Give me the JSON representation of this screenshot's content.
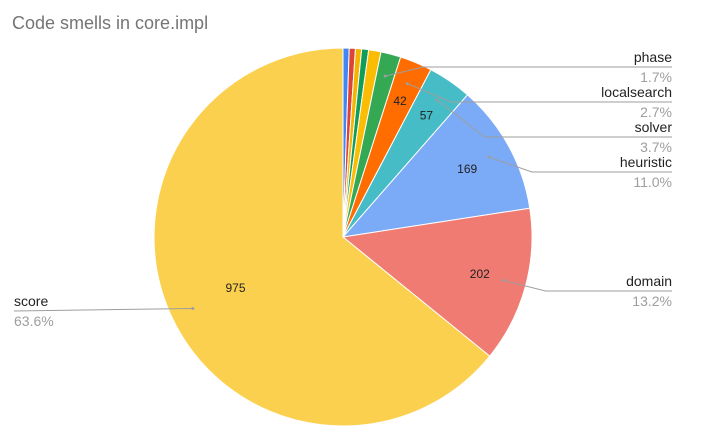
{
  "chart_data": {
    "type": "pie",
    "title": "Code smells in core.impl",
    "start": "top",
    "direction": "clockwise",
    "slices": [
      {
        "name": "",
        "value": 8,
        "color": "#4285f4"
      },
      {
        "name": "",
        "value": 8,
        "color": "#db4437"
      },
      {
        "name": "",
        "value": 8,
        "color": "#f4b400"
      },
      {
        "name": "",
        "value": 9,
        "color": "#0f9d58"
      },
      {
        "name": "",
        "value": 16,
        "color": "#fbbc04"
      },
      {
        "name": "phase",
        "value": 26,
        "percent": "1.7%",
        "color": "#34a853"
      },
      {
        "name": "localsearch",
        "value": 42,
        "percent": "2.7%",
        "color": "#ff6d01"
      },
      {
        "name": "solver",
        "value": 57,
        "percent": "3.7%",
        "color": "#46bdc6"
      },
      {
        "name": "heuristic",
        "value": 169,
        "percent": "11.0%",
        "color": "#7baaf7"
      },
      {
        "name": "domain",
        "value": 202,
        "percent": "13.2%",
        "color": "#f07b72"
      },
      {
        "name": "score",
        "value": 975,
        "percent": "63.6%",
        "color": "#fcd04f"
      }
    ],
    "value_labels_shown": [
      42,
      57,
      169,
      202,
      975
    ]
  }
}
